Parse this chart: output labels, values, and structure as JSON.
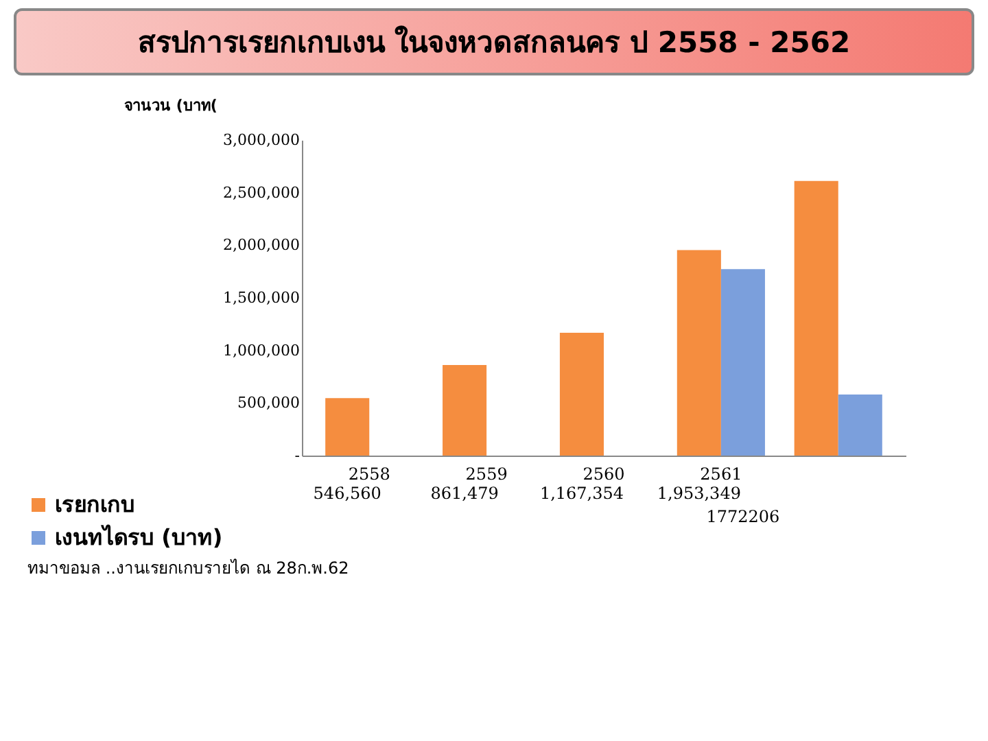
{
  "chart_data": {
    "type": "bar",
    "title": "สรปการเรยกเกบเงน ในจงหวดสกลนคร ป 2558 - 2562",
    "ylabel": "จานวน (บาท(",
    "categories": [
      "2558",
      "2559",
      "2560",
      "2561",
      null
    ],
    "series": [
      {
        "name": "เรยกเกบ",
        "color": "#f58d3f",
        "values": [
          546560,
          861479,
          1167354,
          1953349,
          2610000
        ],
        "value_labels": [
          "546,560",
          "861,479",
          "1,167,354",
          "1,953,349",
          null
        ]
      },
      {
        "name": "เงนทไดรบ (บาท)",
        "color": "#7b9fdc",
        "values": [
          null,
          null,
          null,
          1772206,
          580000
        ],
        "value_labels": [
          null,
          null,
          null,
          "1772206",
          null
        ]
      }
    ],
    "ylim": [
      0,
      3000000
    ],
    "yticks": [
      {
        "value": 0,
        "label": "-"
      },
      {
        "value": 500000,
        "label": "500,000"
      },
      {
        "value": 1000000,
        "label": "1,000,000"
      },
      {
        "value": 1500000,
        "label": "1,500,000"
      },
      {
        "value": 2000000,
        "label": "2,000,000"
      },
      {
        "value": 2500000,
        "label": "2,500,000"
      },
      {
        "value": 3000000,
        "label": "3,000,000"
      }
    ],
    "grid": false,
    "legend": "bottom left",
    "annotations": [
      "ทมาขอมล ..งานเรยกเกบรายได ณ 28ก.พ.62"
    ]
  }
}
